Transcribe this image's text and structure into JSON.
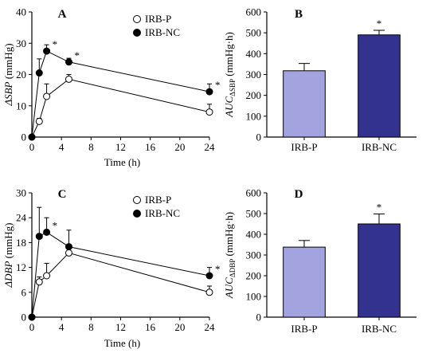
{
  "panels": [
    {
      "letter": "A",
      "type": "line",
      "ylabel_main": "ΔSBP",
      "ylabel_unit": " (mmHg)",
      "xlabel": "Time (h)",
      "ylim": [
        0,
        40
      ],
      "yticks": [
        "0",
        "10",
        "20",
        "30",
        "40"
      ],
      "xlim": [
        0,
        24
      ],
      "xticks": [
        "0",
        "4",
        "8",
        "12",
        "16",
        "20",
        "24"
      ],
      "legend": [
        "IRB-P",
        "IRB-NC"
      ],
      "series": [
        {
          "name": "IRB-P",
          "marker": "open",
          "x": [
            0,
            1,
            2,
            5,
            24
          ],
          "y": [
            0,
            5,
            13,
            18.5,
            8
          ],
          "err": [
            0,
            1,
            4,
            1.5,
            2.5
          ],
          "stars": [
            false,
            false,
            false,
            false,
            false
          ]
        },
        {
          "name": "IRB-NC",
          "marker": "filled",
          "x": [
            0,
            1,
            2,
            5,
            24
          ],
          "y": [
            0,
            20.5,
            27.5,
            24,
            14.5
          ],
          "err": [
            0,
            4.5,
            2,
            1.2,
            2.5
          ],
          "stars": [
            false,
            false,
            true,
            true,
            true
          ]
        }
      ]
    },
    {
      "letter": "B",
      "type": "bar",
      "ylabel_main": "AUC",
      "ylabel_sub": "ΔSBP",
      "ylabel_unit": " (mmHg·h)",
      "ylim": [
        0,
        600
      ],
      "yticks": [
        "0",
        "100",
        "200",
        "300",
        "400",
        "500",
        "600"
      ],
      "categories": [
        "IRB-P",
        "IRB-NC"
      ],
      "values": [
        318,
        490
      ],
      "err": [
        35,
        22
      ],
      "colors": [
        "#a3a3e0",
        "#33338f"
      ],
      "stars": [
        false,
        true
      ]
    },
    {
      "letter": "C",
      "type": "line",
      "ylabel_main": "ΔDBP",
      "ylabel_unit": " (mmHg)",
      "xlabel": "Time (h)",
      "ylim": [
        0,
        30
      ],
      "yticks": [
        "0",
        "6",
        "12",
        "18",
        "24",
        "30"
      ],
      "xlim": [
        0,
        24
      ],
      "xticks": [
        "0",
        "4",
        "8",
        "12",
        "16",
        "20",
        "24"
      ],
      "legend": [
        "IRB-P",
        "IRB-NC"
      ],
      "series": [
        {
          "name": "IRB-P",
          "marker": "open",
          "x": [
            0,
            1,
            2,
            5,
            24
          ],
          "y": [
            0,
            8.5,
            10,
            15.5,
            6
          ],
          "err": [
            0,
            1.2,
            3,
            1.3,
            1.5
          ],
          "stars": [
            false,
            false,
            false,
            false,
            false
          ]
        },
        {
          "name": "IRB-NC",
          "marker": "filled",
          "x": [
            0,
            1,
            2,
            5,
            24
          ],
          "y": [
            0,
            19.5,
            20.5,
            17,
            10
          ],
          "err": [
            0,
            7,
            3.5,
            4,
            2
          ],
          "stars": [
            false,
            false,
            true,
            false,
            true
          ]
        }
      ]
    },
    {
      "letter": "D",
      "type": "bar",
      "ylabel_main": "AUC",
      "ylabel_sub": "ΔDBP",
      "ylabel_unit": " (mmHg·h)",
      "ylim": [
        0,
        600
      ],
      "yticks": [
        "0",
        "100",
        "200",
        "300",
        "400",
        "500",
        "600"
      ],
      "categories": [
        "IRB-P",
        "IRB-NC"
      ],
      "values": [
        338,
        450
      ],
      "err": [
        32,
        48
      ],
      "colors": [
        "#a3a3e0",
        "#33338f"
      ],
      "stars": [
        false,
        true
      ]
    }
  ],
  "chart_data": [
    {
      "type": "line",
      "title": "A",
      "xlabel": "Time (h)",
      "ylabel": "ΔSBP (mmHg)",
      "ylim": [
        0,
        40
      ],
      "series": [
        {
          "name": "IRB-P",
          "x": [
            0,
            1,
            2,
            5,
            24
          ],
          "values": [
            0,
            5,
            13,
            18.5,
            8
          ]
        },
        {
          "name": "IRB-NC",
          "x": [
            0,
            1,
            2,
            5,
            24
          ],
          "values": [
            0,
            20.5,
            27.5,
            24,
            14.5
          ]
        }
      ]
    },
    {
      "type": "bar",
      "title": "B",
      "ylabel": "AUCΔSBP (mmHg·h)",
      "ylim": [
        0,
        600
      ],
      "categories": [
        "IRB-P",
        "IRB-NC"
      ],
      "values": [
        318,
        490
      ]
    },
    {
      "type": "line",
      "title": "C",
      "xlabel": "Time (h)",
      "ylabel": "ΔDBP (mmHg)",
      "ylim": [
        0,
        30
      ],
      "series": [
        {
          "name": "IRB-P",
          "x": [
            0,
            1,
            2,
            5,
            24
          ],
          "values": [
            0,
            8.5,
            10,
            15.5,
            6
          ]
        },
        {
          "name": "IRB-NC",
          "x": [
            0,
            1,
            2,
            5,
            24
          ],
          "values": [
            0,
            19.5,
            20.5,
            17,
            10
          ]
        }
      ]
    },
    {
      "type": "bar",
      "title": "D",
      "ylabel": "AUCΔDBP (mmHg·h)",
      "ylim": [
        0,
        600
      ],
      "categories": [
        "IRB-P",
        "IRB-NC"
      ],
      "values": [
        338,
        450
      ]
    }
  ]
}
